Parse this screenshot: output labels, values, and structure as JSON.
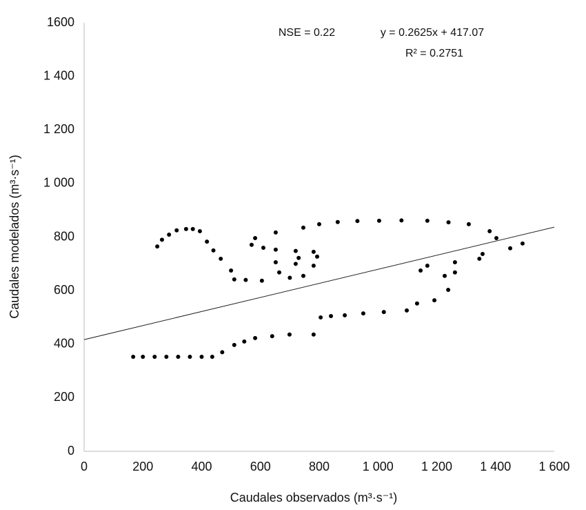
{
  "chart_data": {
    "type": "scatter",
    "annotations": [
      "NSE = 0.22",
      "y = 0.2625x + 417.07",
      "R² = 0.2751"
    ],
    "xlabel": "Caudales observados (m³·s⁻¹)",
    "ylabel": "Caudales modelados (m³·s⁻¹)",
    "trendline": {
      "slope": 0.2625,
      "intercept": 417.07
    },
    "color": "#000000",
    "x": [
      167,
      200,
      240,
      280,
      320,
      360,
      400,
      436,
      470,
      511,
      545,
      582,
      640,
      699,
      781,
      805,
      840,
      887,
      950,
      1020,
      1098,
      1133,
      1192,
      1239,
      1227,
      1262,
      1145,
      1168,
      1262,
      1345,
      1356,
      1450,
      1492,
      1403,
      1380,
      1309,
      1240,
      1168,
      1080,
      1004,
      930,
      863,
      800,
      746,
      652,
      582,
      570,
      610,
      652,
      720,
      781,
      793,
      730,
      652,
      720,
      781,
      664,
      746,
      700,
      605,
      550,
      511,
      500,
      465,
      440,
      418,
      394,
      370,
      347,
      315,
      289,
      265,
      249
    ],
    "values": [
      353,
      353,
      353,
      353,
      353,
      353,
      353,
      353,
      370,
      397,
      410,
      423,
      430,
      436,
      436,
      500,
      505,
      508,
      515,
      520,
      526,
      552,
      564,
      603,
      655,
      668,
      675,
      693,
      706,
      719,
      737,
      758,
      776,
      796,
      822,
      848,
      855,
      861,
      862,
      861,
      860,
      856,
      848,
      835,
      817,
      796,
      771,
      760,
      753,
      748,
      745,
      727,
      722,
      706,
      700,
      693,
      668,
      655,
      648,
      637,
      640,
      642,
      675,
      719,
      750,
      783,
      822,
      830,
      830,
      825,
      809,
      790,
      765
    ],
    "xlim": [
      0,
      1600
    ],
    "xticks": [
      0,
      200,
      400,
      600,
      800,
      {
        "value": 1000,
        "label": "1 000"
      },
      {
        "value": 1200,
        "label": "1 200"
      },
      {
        "value": 1400,
        "label": "1 400"
      },
      {
        "value": 1600,
        "label": "1 600"
      }
    ],
    "ylim": [
      0,
      1600
    ],
    "yticks": [
      0,
      200,
      400,
      600,
      800,
      {
        "value": 1000,
        "label": "1 000"
      },
      {
        "value": 1200,
        "label": "1 200"
      },
      {
        "value": 1400,
        "label": "1 400"
      },
      1600
    ]
  }
}
